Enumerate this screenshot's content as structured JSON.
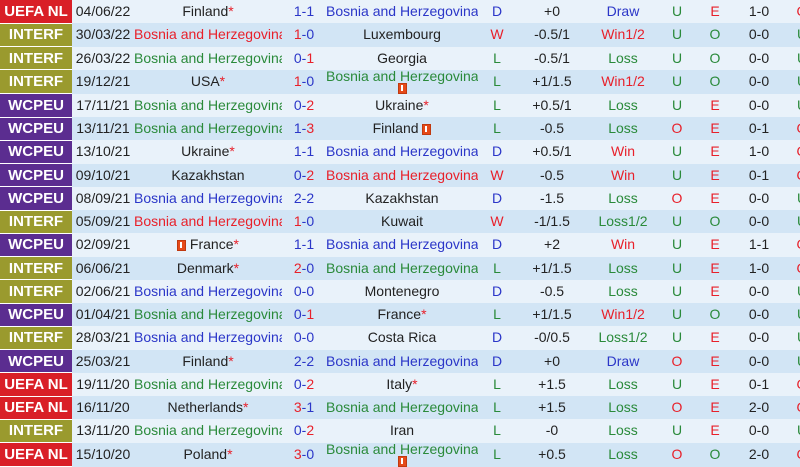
{
  "colors": {
    "UEFA NL": "#d91f27",
    "INTERF": "#9a9a2e",
    "WCPEU": "#5b2d90",
    "blue": "#2b36c8",
    "red": "#e8202a",
    "green": "#2a8a3a"
  },
  "matches": [
    {
      "comp": "UEFA NL",
      "date": "04/06/22",
      "home": "Finland",
      "home_star": true,
      "home_color": "dark",
      "home_card": "",
      "score_h": "1",
      "score_a": "1",
      "sh_color": "blue",
      "sa_color": "blue",
      "away": "Bosnia and Herzegovina",
      "away_star": false,
      "away_color": "blue",
      "away_card": "",
      "result": "D",
      "result_color": "blue",
      "hcp": "+0",
      "outcome": "Draw",
      "outcome_color": "blue",
      "ou": "U",
      "ou_color": "green",
      "eo": "E",
      "eo_color": "red",
      "ht": "1-0",
      "last": "O",
      "last_color": "red"
    },
    {
      "comp": "INTERF",
      "date": "30/03/22",
      "home": "Bosnia and Herzegovina",
      "home_star": true,
      "home_color": "red",
      "home_card": "",
      "score_h": "1",
      "score_a": "0",
      "sh_color": "red",
      "sa_color": "blue",
      "away": "Luxembourg",
      "away_star": false,
      "away_color": "dark",
      "away_card": "",
      "result": "W",
      "result_color": "red",
      "hcp": "-0.5/1",
      "outcome": "Win1/2",
      "outcome_color": "red",
      "ou": "U",
      "ou_color": "green",
      "eo": "O",
      "eo_color": "green",
      "ht": "0-0",
      "last": "U",
      "last_color": "green"
    },
    {
      "comp": "INTERF",
      "date": "26/03/22",
      "home": "Bosnia and Herzegovina",
      "home_star": true,
      "home_color": "green",
      "home_card": "",
      "score_h": "0",
      "score_a": "1",
      "sh_color": "blue",
      "sa_color": "red",
      "away": "Georgia",
      "away_star": false,
      "away_color": "dark",
      "away_card": "",
      "result": "L",
      "result_color": "green",
      "hcp": "-0.5/1",
      "outcome": "Loss",
      "outcome_color": "green",
      "ou": "U",
      "ou_color": "green",
      "eo": "O",
      "eo_color": "green",
      "ht": "0-0",
      "last": "U",
      "last_color": "green"
    },
    {
      "comp": "INTERF",
      "date": "19/12/21",
      "home": "USA",
      "home_star": true,
      "home_color": "dark",
      "home_card": "",
      "score_h": "1",
      "score_a": "0",
      "sh_color": "red",
      "sa_color": "blue",
      "away": "Bosnia and Herzegovina",
      "away_star": false,
      "away_color": "green",
      "away_card": "below",
      "result": "L",
      "result_color": "green",
      "hcp": "+1/1.5",
      "outcome": "Win1/2",
      "outcome_color": "red",
      "ou": "U",
      "ou_color": "green",
      "eo": "O",
      "eo_color": "green",
      "ht": "0-0",
      "last": "U",
      "last_color": "green"
    },
    {
      "comp": "WCPEU",
      "date": "17/11/21",
      "home": "Bosnia and Herzegovina",
      "home_star": false,
      "home_color": "green",
      "home_card": "",
      "score_h": "0",
      "score_a": "2",
      "sh_color": "blue",
      "sa_color": "red",
      "away": "Ukraine",
      "away_star": true,
      "away_color": "dark",
      "away_card": "",
      "result": "L",
      "result_color": "green",
      "hcp": "+0.5/1",
      "outcome": "Loss",
      "outcome_color": "green",
      "ou": "U",
      "ou_color": "green",
      "eo": "E",
      "eo_color": "red",
      "ht": "0-0",
      "last": "U",
      "last_color": "green"
    },
    {
      "comp": "WCPEU",
      "date": "13/11/21",
      "home": "Bosnia and Herzegovina",
      "home_star": true,
      "home_color": "green",
      "home_card": "",
      "score_h": "1",
      "score_a": "3",
      "sh_color": "blue",
      "sa_color": "red",
      "away": "Finland",
      "away_star": false,
      "away_color": "dark",
      "away_card": "inline",
      "result": "L",
      "result_color": "green",
      "hcp": "-0.5",
      "outcome": "Loss",
      "outcome_color": "green",
      "ou": "O",
      "ou_color": "red",
      "eo": "E",
      "eo_color": "red",
      "ht": "0-1",
      "last": "O",
      "last_color": "red"
    },
    {
      "comp": "WCPEU",
      "date": "13/10/21",
      "home": "Ukraine",
      "home_star": true,
      "home_color": "dark",
      "home_card": "",
      "score_h": "1",
      "score_a": "1",
      "sh_color": "blue",
      "sa_color": "blue",
      "away": "Bosnia and Herzegovina",
      "away_star": false,
      "away_color": "blue",
      "away_card": "",
      "result": "D",
      "result_color": "blue",
      "hcp": "+0.5/1",
      "outcome": "Win",
      "outcome_color": "red",
      "ou": "U",
      "ou_color": "green",
      "eo": "E",
      "eo_color": "red",
      "ht": "1-0",
      "last": "O",
      "last_color": "red"
    },
    {
      "comp": "WCPEU",
      "date": "09/10/21",
      "home": "Kazakhstan",
      "home_star": false,
      "home_color": "dark",
      "home_card": "",
      "score_h": "0",
      "score_a": "2",
      "sh_color": "blue",
      "sa_color": "red",
      "away": "Bosnia and Herzegovina",
      "away_star": true,
      "away_color": "red",
      "away_card": "",
      "result": "W",
      "result_color": "red",
      "hcp": "-0.5",
      "outcome": "Win",
      "outcome_color": "red",
      "ou": "U",
      "ou_color": "green",
      "eo": "E",
      "eo_color": "red",
      "ht": "0-1",
      "last": "O",
      "last_color": "red"
    },
    {
      "comp": "WCPEU",
      "date": "08/09/21",
      "home": "Bosnia and Herzegovina",
      "home_star": true,
      "home_color": "blue",
      "home_card": "",
      "score_h": "2",
      "score_a": "2",
      "sh_color": "blue",
      "sa_color": "blue",
      "away": "Kazakhstan",
      "away_star": false,
      "away_color": "dark",
      "away_card": "",
      "result": "D",
      "result_color": "blue",
      "hcp": "-1.5",
      "outcome": "Loss",
      "outcome_color": "green",
      "ou": "O",
      "ou_color": "red",
      "eo": "E",
      "eo_color": "red",
      "ht": "0-0",
      "last": "U",
      "last_color": "green"
    },
    {
      "comp": "INTERF",
      "date": "05/09/21",
      "home": "Bosnia and Herzegovina",
      "home_star": true,
      "home_color": "red",
      "home_card": "",
      "score_h": "1",
      "score_a": "0",
      "sh_color": "red",
      "sa_color": "blue",
      "away": "Kuwait",
      "away_star": false,
      "away_color": "dark",
      "away_card": "",
      "result": "W",
      "result_color": "red",
      "hcp": "-1/1.5",
      "outcome": "Loss1/2",
      "outcome_color": "green",
      "ou": "U",
      "ou_color": "green",
      "eo": "O",
      "eo_color": "green",
      "ht": "0-0",
      "last": "U",
      "last_color": "green"
    },
    {
      "comp": "WCPEU",
      "date": "02/09/21",
      "home": "France",
      "home_star": true,
      "home_color": "dark",
      "home_card": "before",
      "score_h": "1",
      "score_a": "1",
      "sh_color": "blue",
      "sa_color": "blue",
      "away": "Bosnia and Herzegovina",
      "away_star": false,
      "away_color": "blue",
      "away_card": "",
      "result": "D",
      "result_color": "blue",
      "hcp": "+2",
      "outcome": "Win",
      "outcome_color": "red",
      "ou": "U",
      "ou_color": "green",
      "eo": "E",
      "eo_color": "red",
      "ht": "1-1",
      "last": "O",
      "last_color": "red"
    },
    {
      "comp": "INTERF",
      "date": "06/06/21",
      "home": "Denmark",
      "home_star": true,
      "home_color": "dark",
      "home_card": "",
      "score_h": "2",
      "score_a": "0",
      "sh_color": "red",
      "sa_color": "blue",
      "away": "Bosnia and Herzegovina",
      "away_star": false,
      "away_color": "green",
      "away_card": "",
      "result": "L",
      "result_color": "green",
      "hcp": "+1/1.5",
      "outcome": "Loss",
      "outcome_color": "green",
      "ou": "U",
      "ou_color": "green",
      "eo": "E",
      "eo_color": "red",
      "ht": "1-0",
      "last": "O",
      "last_color": "red"
    },
    {
      "comp": "INTERF",
      "date": "02/06/21",
      "home": "Bosnia and Herzegovina",
      "home_star": true,
      "home_color": "blue",
      "home_card": "",
      "score_h": "0",
      "score_a": "0",
      "sh_color": "blue",
      "sa_color": "blue",
      "away": "Montenegro",
      "away_star": false,
      "away_color": "dark",
      "away_card": "",
      "result": "D",
      "result_color": "blue",
      "hcp": "-0.5",
      "outcome": "Loss",
      "outcome_color": "green",
      "ou": "U",
      "ou_color": "green",
      "eo": "E",
      "eo_color": "red",
      "ht": "0-0",
      "last": "U",
      "last_color": "green"
    },
    {
      "comp": "WCPEU",
      "date": "01/04/21",
      "home": "Bosnia and Herzegovina",
      "home_star": false,
      "home_color": "green",
      "home_card": "",
      "score_h": "0",
      "score_a": "1",
      "sh_color": "blue",
      "sa_color": "red",
      "away": "France",
      "away_star": true,
      "away_color": "dark",
      "away_card": "",
      "result": "L",
      "result_color": "green",
      "hcp": "+1/1.5",
      "outcome": "Win1/2",
      "outcome_color": "red",
      "ou": "U",
      "ou_color": "green",
      "eo": "O",
      "eo_color": "green",
      "ht": "0-0",
      "last": "U",
      "last_color": "green"
    },
    {
      "comp": "INTERF",
      "date": "28/03/21",
      "home": "Bosnia and Herzegovina",
      "home_star": true,
      "home_color": "blue",
      "home_card": "",
      "score_h": "0",
      "score_a": "0",
      "sh_color": "blue",
      "sa_color": "blue",
      "away": "Costa Rica",
      "away_star": false,
      "away_color": "dark",
      "away_card": "",
      "result": "D",
      "result_color": "blue",
      "hcp": "-0/0.5",
      "outcome": "Loss1/2",
      "outcome_color": "green",
      "ou": "U",
      "ou_color": "green",
      "eo": "E",
      "eo_color": "red",
      "ht": "0-0",
      "last": "U",
      "last_color": "green"
    },
    {
      "comp": "WCPEU",
      "date": "25/03/21",
      "home": "Finland",
      "home_star": true,
      "home_color": "dark",
      "home_card": "",
      "score_h": "2",
      "score_a": "2",
      "sh_color": "blue",
      "sa_color": "blue",
      "away": "Bosnia and Herzegovina",
      "away_star": false,
      "away_color": "blue",
      "away_card": "",
      "result": "D",
      "result_color": "blue",
      "hcp": "+0",
      "outcome": "Draw",
      "outcome_color": "blue",
      "ou": "O",
      "ou_color": "red",
      "eo": "E",
      "eo_color": "red",
      "ht": "0-0",
      "last": "U",
      "last_color": "green"
    },
    {
      "comp": "UEFA NL",
      "date": "19/11/20",
      "home": "Bosnia and Herzegovina",
      "home_star": false,
      "home_color": "green",
      "home_card": "",
      "score_h": "0",
      "score_a": "2",
      "sh_color": "blue",
      "sa_color": "red",
      "away": "Italy",
      "away_star": true,
      "away_color": "dark",
      "away_card": "",
      "result": "L",
      "result_color": "green",
      "hcp": "+1.5",
      "outcome": "Loss",
      "outcome_color": "green",
      "ou": "U",
      "ou_color": "green",
      "eo": "E",
      "eo_color": "red",
      "ht": "0-1",
      "last": "O",
      "last_color": "red"
    },
    {
      "comp": "UEFA NL",
      "date": "16/11/20",
      "home": "Netherlands",
      "home_star": true,
      "home_color": "dark",
      "home_card": "",
      "score_h": "3",
      "score_a": "1",
      "sh_color": "red",
      "sa_color": "blue",
      "away": "Bosnia and Herzegovina",
      "away_star": false,
      "away_color": "green",
      "away_card": "",
      "result": "L",
      "result_color": "green",
      "hcp": "+1.5",
      "outcome": "Loss",
      "outcome_color": "green",
      "ou": "O",
      "ou_color": "red",
      "eo": "E",
      "eo_color": "red",
      "ht": "2-0",
      "last": "O",
      "last_color": "red"
    },
    {
      "comp": "INTERF",
      "date": "13/11/20",
      "home": "Bosnia and Herzegovina",
      "home_star": true,
      "home_color": "green",
      "home_card": "",
      "score_h": "0",
      "score_a": "2",
      "sh_color": "blue",
      "sa_color": "red",
      "away": "Iran",
      "away_star": false,
      "away_color": "dark",
      "away_card": "",
      "result": "L",
      "result_color": "green",
      "hcp": "-0",
      "outcome": "Loss",
      "outcome_color": "green",
      "ou": "U",
      "ou_color": "green",
      "eo": "E",
      "eo_color": "red",
      "ht": "0-0",
      "last": "U",
      "last_color": "green"
    },
    {
      "comp": "UEFA NL",
      "date": "15/10/20",
      "home": "Poland",
      "home_star": true,
      "home_color": "dark",
      "home_card": "",
      "score_h": "3",
      "score_a": "0",
      "sh_color": "red",
      "sa_color": "blue",
      "away": "Bosnia and Herzegovina",
      "away_star": false,
      "away_color": "green",
      "away_card": "below",
      "result": "L",
      "result_color": "green",
      "hcp": "+0.5",
      "outcome": "Loss",
      "outcome_color": "green",
      "ou": "O",
      "ou_color": "red",
      "eo": "O",
      "eo_color": "green",
      "ht": "2-0",
      "last": "O",
      "last_color": "red"
    }
  ]
}
